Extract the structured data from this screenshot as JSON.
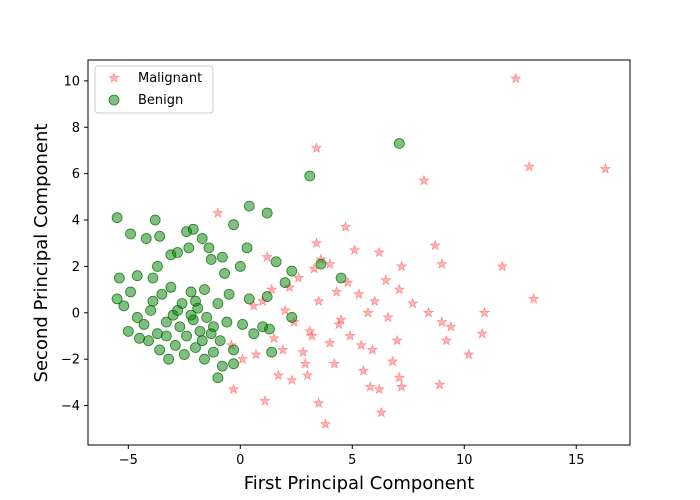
{
  "chart_data": {
    "type": "scatter",
    "title": "",
    "xlabel": "First Principal Component",
    "ylabel": "Second Principal Component",
    "xlim": [
      -6.8,
      17.4
    ],
    "ylim": [
      -5.7,
      10.9
    ],
    "xticks": [
      -5,
      0,
      5,
      10,
      15
    ],
    "yticks": [
      -4,
      -2,
      0,
      2,
      4,
      6,
      8,
      10
    ],
    "grid": false,
    "legend_position": "top-left",
    "series": [
      {
        "name": "Malignant",
        "marker": "star",
        "color": "#ff5a5a",
        "points": [
          [
            12.3,
            10.1
          ],
          [
            16.3,
            6.2
          ],
          [
            12.9,
            6.3
          ],
          [
            8.2,
            5.7
          ],
          [
            3.4,
            7.1
          ],
          [
            13.1,
            0.6
          ],
          [
            11.7,
            2.0
          ],
          [
            9.0,
            2.1
          ],
          [
            8.7,
            2.9
          ],
          [
            7.2,
            2.0
          ],
          [
            6.5,
            1.4
          ],
          [
            7.1,
            1.0
          ],
          [
            6.0,
            0.5
          ],
          [
            5.7,
            0.0
          ],
          [
            6.6,
            -0.2
          ],
          [
            7.0,
            -1.2
          ],
          [
            6.8,
            -2.1
          ],
          [
            5.9,
            -1.6
          ],
          [
            5.5,
            -2.5
          ],
          [
            6.2,
            -3.3
          ],
          [
            5.8,
            -3.2
          ],
          [
            7.2,
            -3.2
          ],
          [
            7.1,
            -2.8
          ],
          [
            8.9,
            -3.1
          ],
          [
            6.3,
            -4.3
          ],
          [
            3.5,
            -3.9
          ],
          [
            3.8,
            -4.8
          ],
          [
            3.0,
            -2.7
          ],
          [
            2.3,
            -2.9
          ],
          [
            1.1,
            -3.8
          ],
          [
            1.7,
            -2.7
          ],
          [
            2.8,
            -1.7
          ],
          [
            3.2,
            -1.0
          ],
          [
            4.0,
            -1.3
          ],
          [
            4.5,
            -0.3
          ],
          [
            3.5,
            0.5
          ],
          [
            4.8,
            1.3
          ],
          [
            4.0,
            2.1
          ],
          [
            3.3,
            1.9
          ],
          [
            3.4,
            3.0
          ],
          [
            4.7,
            3.7
          ],
          [
            5.1,
            2.7
          ],
          [
            6.2,
            2.6
          ],
          [
            9.0,
            -0.4
          ],
          [
            9.4,
            -0.6
          ],
          [
            10.8,
            -0.9
          ],
          [
            10.9,
            0.0
          ],
          [
            10.2,
            -1.8
          ],
          [
            8.4,
            0.0
          ],
          [
            9.2,
            -1.2
          ],
          [
            4.2,
            -2.2
          ],
          [
            2.0,
            0.1
          ],
          [
            1.5,
            -1.1
          ],
          [
            2.4,
            -0.4
          ],
          [
            1.0,
            0.5
          ],
          [
            0.7,
            -1.8
          ],
          [
            0.1,
            -2.0
          ],
          [
            -0.3,
            -3.3
          ],
          [
            -0.4,
            -1.4
          ],
          [
            -1.0,
            4.3
          ],
          [
            1.2,
            2.4
          ],
          [
            1.4,
            1.0
          ],
          [
            2.6,
            1.5
          ],
          [
            4.4,
            -0.5
          ],
          [
            3.6,
            2.3
          ],
          [
            5.3,
            0.8
          ],
          [
            4.9,
            -1.0
          ],
          [
            2.9,
            -2.2
          ],
          [
            0.6,
            0.3
          ],
          [
            1.9,
            -1.6
          ],
          [
            4.3,
            0.9
          ],
          [
            3.1,
            -0.8
          ],
          [
            5.4,
            -1.4
          ],
          [
            2.2,
            1.1
          ],
          [
            7.7,
            0.4
          ]
        ]
      },
      {
        "name": "Benign",
        "marker": "circle",
        "color": "#008000",
        "points": [
          [
            7.1,
            7.3
          ],
          [
            3.1,
            5.9
          ],
          [
            0.4,
            4.6
          ],
          [
            1.2,
            4.3
          ],
          [
            -0.3,
            3.8
          ],
          [
            -5.5,
            4.1
          ],
          [
            -4.9,
            3.4
          ],
          [
            -3.8,
            4.0
          ],
          [
            -3.6,
            3.3
          ],
          [
            -2.4,
            3.5
          ],
          [
            -2.1,
            3.6
          ],
          [
            -1.7,
            3.2
          ],
          [
            -4.2,
            3.2
          ],
          [
            -2.3,
            2.8
          ],
          [
            -1.4,
            2.8
          ],
          [
            0.3,
            2.8
          ],
          [
            -0.8,
            2.4
          ],
          [
            -1.3,
            2.3
          ],
          [
            1.6,
            2.2
          ],
          [
            -3.1,
            2.5
          ],
          [
            -2.8,
            2.6
          ],
          [
            -4.6,
            1.6
          ],
          [
            -5.4,
            1.5
          ],
          [
            -3.7,
            2.0
          ],
          [
            2.3,
            1.8
          ],
          [
            3.6,
            2.1
          ],
          [
            4.5,
            1.5
          ],
          [
            2.0,
            1.3
          ],
          [
            1.2,
            0.7
          ],
          [
            -5.5,
            0.6
          ],
          [
            -4.9,
            0.9
          ],
          [
            -5.2,
            0.3
          ],
          [
            -4.6,
            -0.2
          ],
          [
            -5.0,
            -0.8
          ],
          [
            -4.3,
            -0.5
          ],
          [
            -4.0,
            0.1
          ],
          [
            -3.7,
            -0.9
          ],
          [
            -3.3,
            -0.4
          ],
          [
            -3.0,
            -0.1
          ],
          [
            -2.7,
            -0.6
          ],
          [
            -2.4,
            -1.0
          ],
          [
            -2.1,
            -0.3
          ],
          [
            -1.8,
            -0.8
          ],
          [
            -1.5,
            -0.2
          ],
          [
            -1.2,
            -0.6
          ],
          [
            -0.9,
            -1.2
          ],
          [
            -0.6,
            -0.4
          ],
          [
            -0.3,
            -1.6
          ],
          [
            0.1,
            -0.5
          ],
          [
            0.4,
            0.6
          ],
          [
            -3.9,
            0.5
          ],
          [
            -3.5,
            0.8
          ],
          [
            -3.1,
            1.1
          ],
          [
            -2.6,
            0.4
          ],
          [
            -2.2,
            0.9
          ],
          [
            -1.9,
            0.2
          ],
          [
            -1.6,
            1.0
          ],
          [
            -1.0,
            0.4
          ],
          [
            -0.5,
            0.8
          ],
          [
            -2.9,
            -1.4
          ],
          [
            -2.5,
            -1.8
          ],
          [
            -2.0,
            -1.5
          ],
          [
            -1.6,
            -2.0
          ],
          [
            -1.2,
            -1.7
          ],
          [
            -0.8,
            -2.3
          ],
          [
            -0.3,
            -2.2
          ],
          [
            -1.0,
            -2.8
          ],
          [
            -3.2,
            -2.0
          ],
          [
            -3.6,
            -1.6
          ],
          [
            -4.1,
            -1.2
          ],
          [
            1.3,
            -0.7
          ],
          [
            1.4,
            -1.7
          ],
          [
            0.6,
            -0.9
          ],
          [
            1.0,
            -0.6
          ],
          [
            2.3,
            -0.2
          ],
          [
            -2.8,
            0.1
          ],
          [
            -3.3,
            -1.0
          ],
          [
            -2.0,
            0.5
          ],
          [
            -1.3,
            -0.9
          ],
          [
            -0.7,
            1.7
          ],
          [
            0.0,
            2.0
          ],
          [
            -3.9,
            1.5
          ],
          [
            -4.5,
            -1.1
          ],
          [
            -2.2,
            -0.1
          ],
          [
            -1.7,
            -1.2
          ]
        ]
      }
    ]
  }
}
